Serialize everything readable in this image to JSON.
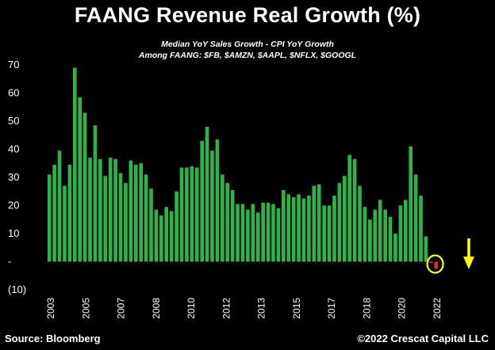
{
  "colors": {
    "background": "#000000",
    "bar": "#2fb24a",
    "negative_bar": "#e53225",
    "highlight_circle": "#ffff00",
    "arrow": "#ffff00",
    "text": "#ffffff"
  },
  "footer": {
    "source": "Source: Bloomberg",
    "copyright": "©2022 Crescat Capital LLC"
  },
  "annotation": {
    "circle_icon": "yellow-circle",
    "arrow_icon": "down-arrow"
  },
  "chart_data": {
    "type": "bar",
    "title": "FAANG Revenue Real Growth (%)",
    "subtitle": [
      "Median YoY Sales Growth - CPI YoY Growth",
      "Among FAANG: $FB, $AMZN, $AAPL, $NFLX, $GOOGL"
    ],
    "xlabel": "",
    "ylabel": "",
    "ylim": [
      -10,
      70
    ],
    "yticks": [
      -10,
      0,
      10,
      20,
      30,
      40,
      50,
      60,
      70
    ],
    "ytick_labels": [
      "(10)",
      "-",
      "10",
      "20",
      "30",
      "40",
      "50",
      "60",
      "70"
    ],
    "xtick_labels": [
      "2003",
      "2005",
      "2007",
      "2008",
      "2010",
      "2012",
      "2013",
      "2015",
      "2017",
      "2018",
      "2020",
      "2022"
    ],
    "legend": "none",
    "grid": false,
    "values": [
      31,
      34.5,
      39.5,
      27,
      34.5,
      69,
      58.5,
      53,
      37,
      48.5,
      36.5,
      30.5,
      37,
      36.5,
      31.5,
      28,
      36,
      34.5,
      35,
      31,
      26,
      18.5,
      16.5,
      19.5,
      18,
      25,
      33.5,
      33.5,
      34,
      33.5,
      43,
      48,
      39.5,
      43.5,
      31,
      28,
      25.5,
      20.5,
      20.5,
      18.5,
      20.5,
      17.5,
      21,
      21,
      20.5,
      19,
      25.5,
      24,
      23,
      24,
      22.5,
      23.5,
      27,
      27.5,
      20,
      20,
      23.5,
      28,
      30.5,
      38,
      36.5,
      27,
      19.5,
      15,
      18.5,
      22,
      18.5,
      16,
      10,
      20,
      22,
      41,
      31,
      23.5,
      9,
      -0.5,
      -2.5
    ],
    "highlighted_points": [
      75,
      76
    ]
  }
}
